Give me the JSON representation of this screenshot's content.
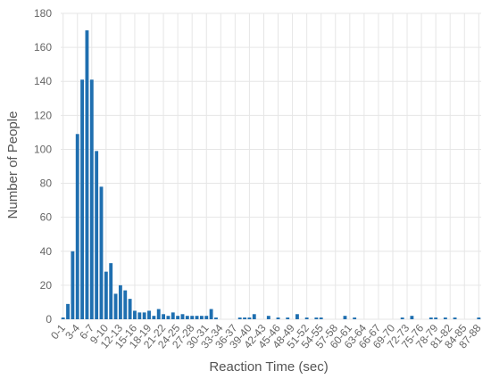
{
  "chart_data": {
    "type": "bar",
    "title": "",
    "xlabel": "Reaction Time (sec)",
    "ylabel": "Number of People",
    "ylim": [
      0,
      180
    ],
    "yticks": [
      0,
      20,
      40,
      60,
      80,
      100,
      120,
      140,
      160,
      180
    ],
    "grid": true,
    "legend": "none",
    "bar_color": "#1f6fb0",
    "grid_color": "#e6e6e6",
    "categories": [
      "0-1",
      "1-2",
      "2-3",
      "3-4",
      "4-5",
      "5-6",
      "6-7",
      "7-8",
      "8-9",
      "9-10",
      "10-11",
      "11-12",
      "12-13",
      "13-14",
      "14-15",
      "15-16",
      "16-17",
      "17-18",
      "18-19",
      "19-20",
      "20-21",
      "21-22",
      "22-23",
      "23-24",
      "24-25",
      "25-26",
      "26-27",
      "27-28",
      "28-29",
      "29-30",
      "30-31",
      "31-32",
      "32-33",
      "33-34",
      "34-35",
      "35-36",
      "36-37",
      "37-38",
      "38-39",
      "39-40",
      "40-41",
      "41-42",
      "42-43",
      "43-44",
      "44-45",
      "45-46",
      "46-47",
      "47-48",
      "48-49",
      "49-50",
      "50-51",
      "51-52",
      "52-53",
      "53-54",
      "54-55",
      "55-56",
      "56-57",
      "57-58",
      "58-59",
      "59-60",
      "60-61",
      "61-62",
      "62-63",
      "63-64",
      "64-65",
      "65-66",
      "66-67",
      "67-68",
      "68-69",
      "69-70",
      "70-71",
      "71-72",
      "72-73",
      "73-74",
      "74-75",
      "75-76",
      "76-77",
      "77-78",
      "78-79",
      "79-80",
      "80-81",
      "81-82",
      "82-83",
      "83-84",
      "84-85",
      "85-86",
      "86-87",
      "87-88"
    ],
    "tick_labels": [
      "0-1",
      "3-4",
      "6-7",
      "9-10",
      "12-13",
      "15-16",
      "18-19",
      "21-22",
      "24-25",
      "27-28",
      "30-31",
      "33-34",
      "36-37",
      "39-40",
      "42-43",
      "45-46",
      "48-49",
      "51-52",
      "54-55",
      "57-58",
      "60-61",
      "63-64",
      "66-67",
      "69-70",
      "72-73",
      "75-76",
      "78-79",
      "81-82",
      "84-85",
      "87-88"
    ],
    "values": [
      1,
      9,
      40,
      109,
      141,
      170,
      141,
      99,
      78,
      28,
      33,
      15,
      20,
      17,
      12,
      5,
      4,
      4,
      5,
      2,
      6,
      3,
      2,
      4,
      2,
      3,
      2,
      2,
      2,
      2,
      2,
      6,
      1,
      0,
      0,
      0,
      0,
      1,
      1,
      1,
      3,
      0,
      0,
      2,
      0,
      1,
      0,
      1,
      0,
      3,
      0,
      1,
      0,
      1,
      1,
      0,
      0,
      0,
      0,
      2,
      0,
      1,
      0,
      0,
      0,
      0,
      0,
      0,
      0,
      0,
      0,
      1,
      0,
      2,
      0,
      0,
      0,
      1,
      1,
      0,
      1,
      0,
      1,
      0,
      0,
      0,
      0,
      1
    ]
  }
}
